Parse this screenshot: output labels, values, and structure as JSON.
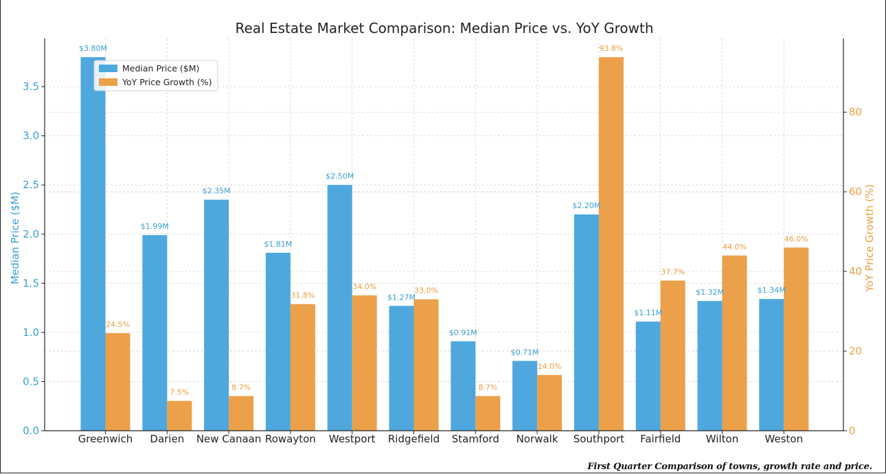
{
  "caption": "First Quarter Comparison of towns, growth rate and price.",
  "colors": {
    "price": "#4EA8DE",
    "growth": "#EBA049",
    "price_text": "#3A9FCF",
    "growth_text": "#E8A043"
  },
  "chart_data": {
    "type": "bar",
    "title": "Real Estate Market Comparison: Median Price vs. YoY Growth",
    "categories": [
      "Greenwich",
      "Darien",
      "New Canaan",
      "Rowayton",
      "Westport",
      "Ridgefield",
      "Stamford",
      "Norwalk",
      "Southport",
      "Fairfield",
      "Wilton",
      "Weston"
    ],
    "series": [
      {
        "name": "Median Price ($M)",
        "axis": "left",
        "values": [
          3.8,
          1.99,
          2.35,
          1.81,
          2.5,
          1.27,
          0.91,
          0.71,
          2.2,
          1.11,
          1.32,
          1.34
        ],
        "labels": [
          "$3.80M",
          "$1.99M",
          "$2.35M",
          "$1.81M",
          "$2.50M",
          "$1.27M",
          "$0.91M",
          "$0.71M",
          "$2.20M",
          "$1.11M",
          "$1.32M",
          "$1.34M"
        ]
      },
      {
        "name": "YoY Price Growth (%)",
        "axis": "right",
        "values": [
          24.5,
          7.5,
          8.7,
          31.8,
          34.0,
          33.0,
          8.7,
          14.0,
          93.8,
          37.7,
          44.0,
          46.0
        ],
        "labels": [
          "24.5%",
          "7.5%",
          "8.7%",
          "31.8%",
          "34.0%",
          "33.0%",
          "8.7%",
          "14.0%",
          "93.8%",
          "37.7%",
          "44.0%",
          "46.0%"
        ]
      }
    ],
    "ylabel_left": "Median Price ($M)",
    "ylabel_right": "YoY Price Growth (%)",
    "ylim_left": [
      0,
      3.99
    ],
    "ylim_right": [
      0,
      98.5
    ],
    "yticks_left": [
      "0.0",
      "0.5",
      "1.0",
      "1.5",
      "2.0",
      "2.5",
      "3.0",
      "3.5"
    ],
    "yticks_right": [
      "0",
      "20",
      "40",
      "60",
      "80"
    ],
    "grid": true,
    "legend_position": "top-left"
  }
}
